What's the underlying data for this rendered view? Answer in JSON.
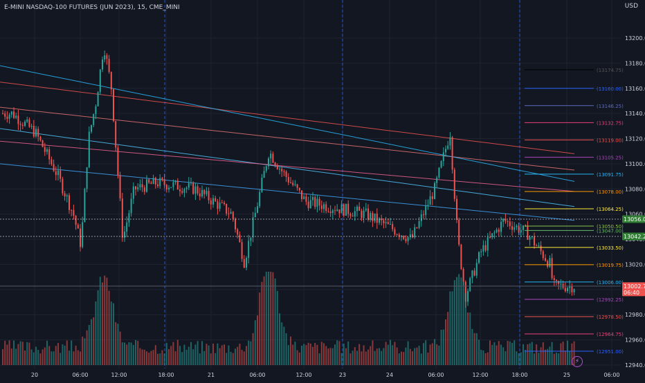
{
  "header": {
    "title": "E-MINI NASDAQ-100 FUTURES (JUN 2023), 15, CME_MINI",
    "currency": "USD"
  },
  "colors": {
    "background": "#131722",
    "grid": "#1f2330",
    "up": "#26a69a",
    "down": "#ef5350",
    "axis_text": "#d1d4dc",
    "session_line": "#2962ff"
  },
  "chart_data": {
    "type": "candlestick",
    "ylim": [
      12935,
      13225
    ],
    "y_ticks": [
      12940,
      12960,
      12980,
      13000,
      13020,
      13040,
      13060,
      13080,
      13100,
      13120,
      13140,
      13160,
      13180,
      13200
    ],
    "x_ticks": [
      "20",
      "06:00",
      "12:00",
      "18:00",
      "21",
      "06:00",
      "12:00",
      "23",
      "24",
      "06:00",
      "12:00",
      "18:00",
      "25",
      "06:00"
    ],
    "session_separators": [
      "20 18:00",
      "23",
      "24 18:00"
    ],
    "price_path": [
      [
        "20 00:00",
        13140
      ],
      [
        "20 03:00",
        13125
      ],
      [
        "20 06:00",
        13090
      ],
      [
        "20 08:00",
        13060
      ],
      [
        "20 09:00",
        13035
      ],
      [
        "20 10:00",
        13120
      ],
      [
        "20 11:00",
        13150
      ],
      [
        "20 12:00",
        13195
      ],
      [
        "20 13:00",
        13160
      ],
      [
        "20 14:30",
        13040
      ],
      [
        "20 16:00",
        13080
      ],
      [
        "20 19:00",
        13085
      ],
      [
        "21 00:00",
        13080
      ],
      [
        "21 06:00",
        13060
      ],
      [
        "21 08:00",
        13022
      ],
      [
        "21 10:00",
        13065
      ],
      [
        "21 12:00",
        13110
      ],
      [
        "21 14:00",
        13095
      ],
      [
        "21 18:00",
        13070
      ],
      [
        "24 00:00",
        13060
      ],
      [
        "24 03:00",
        13050
      ],
      [
        "24 06:00",
        13040
      ],
      [
        "24 09:00",
        13080
      ],
      [
        "24 11:00",
        13125
      ],
      [
        "24 12:00",
        13040
      ],
      [
        "24 13:00",
        12995
      ],
      [
        "24 15:00",
        13030
      ],
      [
        "24 18:00",
        13055
      ],
      [
        "24 21:00",
        13045
      ],
      [
        "25 00:00",
        13020
      ],
      [
        "25 01:00",
        13002.75
      ]
    ],
    "volume_peaks": [
      [
        "20 12:00",
        0.75
      ],
      [
        "21 12:00",
        0.9
      ],
      [
        "24 12:00",
        0.8
      ]
    ],
    "vwap_bands": {
      "red_upper": [
        13165,
        13100
      ],
      "red_mid": [
        13140,
        13080
      ],
      "blue_upper": [
        13178,
        13080
      ],
      "blue_mid": [
        13125,
        13050
      ]
    },
    "levels": [
      {
        "label": "(13174.75)",
        "price": 13174.75,
        "color": "#000000"
      },
      {
        "label": "(13160.00)",
        "price": 13160.0,
        "color": "#2962ff"
      },
      {
        "label": "(13146.25)",
        "price": 13146.25,
        "color": "#5c6bc0"
      },
      {
        "label": "(13132.75)",
        "price": 13132.75,
        "color": "#ec407a"
      },
      {
        "label": "(13119.00)",
        "price": 13119.0,
        "color": "#ef5350"
      },
      {
        "label": "(13105.25)",
        "price": 13105.25,
        "color": "#ab47bc"
      },
      {
        "label": "(13091.75)",
        "price": 13091.75,
        "color": "#29b6f6"
      },
      {
        "label": "(13078.00)",
        "price": 13078.0,
        "color": "#ff9800"
      },
      {
        "label": "(13064.25)",
        "price": 13064.25,
        "color": "#ffeb3b"
      },
      {
        "label": "(13050.50)",
        "price": 13050.5,
        "color": "#8bc34a"
      },
      {
        "label": "(13047.00)",
        "price": 13047.0,
        "color": "#66bb6a"
      },
      {
        "label": "(13033.50)",
        "price": 13033.5,
        "color": "#ffeb3b"
      },
      {
        "label": "(13019.75)",
        "price": 13019.75,
        "color": "#ff9800"
      },
      {
        "label": "(13006.00)",
        "price": 13006.0,
        "color": "#29b6f6"
      },
      {
        "label": "(12992.25)",
        "price": 12992.25,
        "color": "#ab47bc"
      },
      {
        "label": "(12978.50)",
        "price": 12978.5,
        "color": "#ef5350"
      },
      {
        "label": "(12964.75)",
        "price": 12964.75,
        "color": "#ec407a"
      },
      {
        "label": "(12951.00)",
        "price": 12951.0,
        "color": "#2962ff"
      }
    ],
    "price_labels": [
      {
        "text": "13056.00",
        "price": 13056.0,
        "bg": "#2e7d32"
      },
      {
        "text": "13042.25",
        "price": 13042.25,
        "bg": "#2e7d32"
      },
      {
        "text": "13002.75",
        "price": 13002.75,
        "bg": "#ef5350",
        "sub": "06:40"
      }
    ],
    "last_price": 13002.75,
    "countdown": "06:40"
  }
}
